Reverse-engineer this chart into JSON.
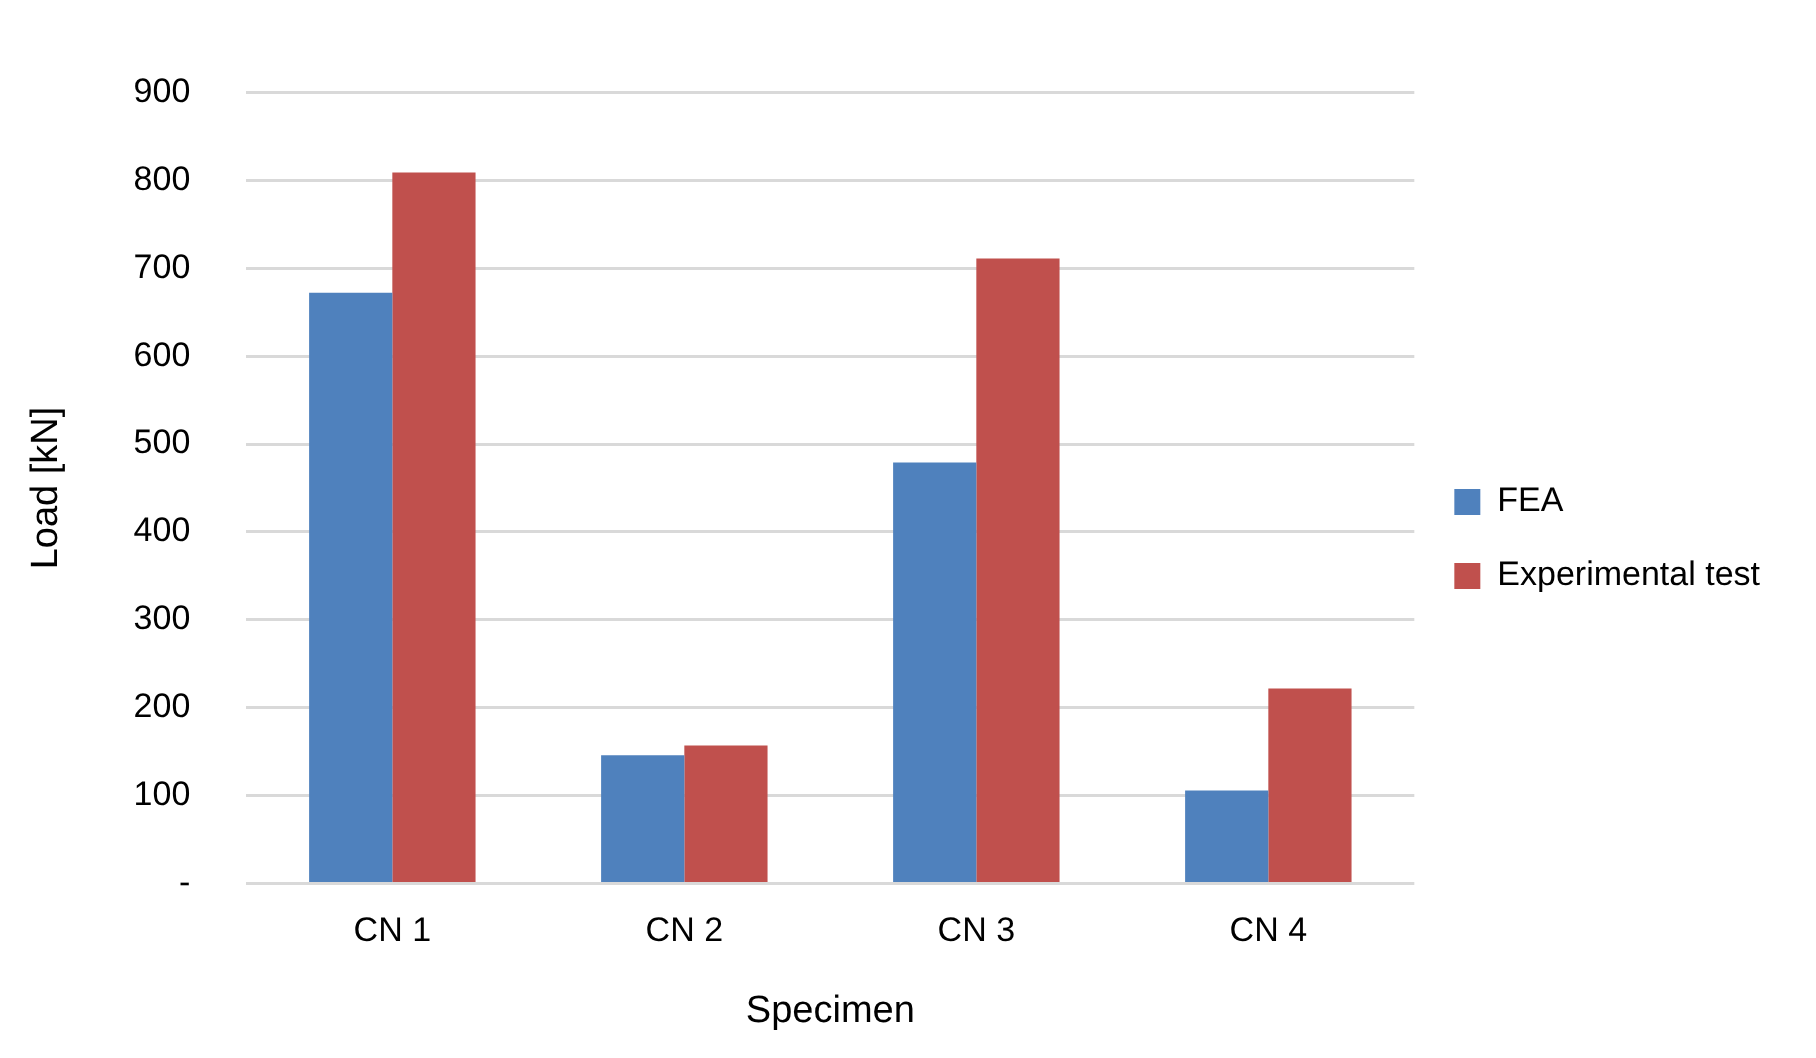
{
  "chart_data": {
    "type": "bar",
    "xlabel": "Specimen",
    "ylabel": "Load [kN]",
    "categories": [
      "CN 1",
      "CN 2",
      "CN 3",
      "CN 4"
    ],
    "series": [
      {
        "name": "FEA",
        "color": "#4f81bd",
        "values": [
          672,
          146,
          479,
          106
        ]
      },
      {
        "name": "Experimental test",
        "color": "#c0504d",
        "values": [
          809,
          157,
          711,
          222
        ]
      }
    ],
    "ylim": [
      0,
      900
    ],
    "yticks": [
      {
        "value": 0,
        "label": "-"
      },
      100,
      200,
      300,
      400,
      500,
      600,
      700,
      800,
      900
    ],
    "grid": "y",
    "legend": "right"
  }
}
